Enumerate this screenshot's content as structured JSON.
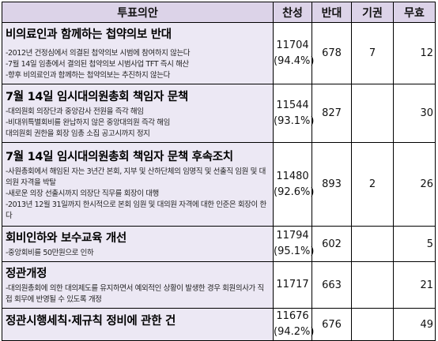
{
  "headers": {
    "item": "투표의안",
    "for": "찬성",
    "against": "반대",
    "abstain": "기권",
    "invalid": "무효"
  },
  "rows": [
    {
      "title": "비의료인과 함께하는 첩약의보 반대",
      "subs": [
        "-2012년 건정심에서 의결된 첩약의보 시범에 참여하지 않는다",
        "-7월 14일 임총에서 결의된 첩약의보 시범사업 TFT 즉시 해산",
        "-향후 비의료인과 함께하는 첩약의보는 추진하지 않는다"
      ],
      "for": "11704",
      "for_pct": "(94.4%)",
      "against": "678",
      "abstain": "7",
      "invalid": "12"
    },
    {
      "title": "7월 14일 임시대의원총회 책임자 문책",
      "subs": [
        "-대의원회 의장단과 중앙감사 전원을 즉각 해임",
        "-비대위특별회비를 완납하지 않은 중앙대의원 즉각 해임",
        "대의원회 권한을 회장 임총 소집 공고시까지 정지"
      ],
      "for": "11544",
      "for_pct": "(93.1%)",
      "against": "827",
      "abstain": "",
      "invalid": "30"
    },
    {
      "title": "7월 14일 임시대의원총회 책임자 문책 후속조치",
      "subs": [
        "-사원총회에서 해임된 자는 3년간 본회, 지부 및 산하단체의 임명직 및 선출직 임원 및 대의원 자격을 박탈",
        "-새로운 의장 선출시까지 의장단 직무를 회장이 대행",
        "-2013년 12월 31일까지 한시적으로 본회 임원 및 대의원 자격에 대한 인준은 회장이 한다"
      ],
      "for": "11480",
      "for_pct": "(92.6%)",
      "against": "893",
      "abstain": "2",
      "invalid": "26"
    },
    {
      "title": "회비인하와 보수교육 개선",
      "subs": [
        "-중앙회비를 50만원으로 인하"
      ],
      "for": "11794",
      "for_pct": "(95.1%)",
      "against": "602",
      "abstain": "",
      "invalid": "5"
    },
    {
      "title": "정관개정",
      "subs": [
        "-대의원총회에 의한 대의제도를 유지하면서 예외적인 상황이 발생한 경우 회원의사가 직접 회무에 반영될 수 있도록 개정"
      ],
      "for": "11717",
      "for_pct": "",
      "against": "663",
      "abstain": "",
      "invalid": "21"
    },
    {
      "title": "정관시행세칙·제규칙 정비에 관한 건",
      "subs": [],
      "for": "11676",
      "for_pct": "(94.2%)",
      "against": "676",
      "abstain": "",
      "invalid": "49"
    }
  ]
}
